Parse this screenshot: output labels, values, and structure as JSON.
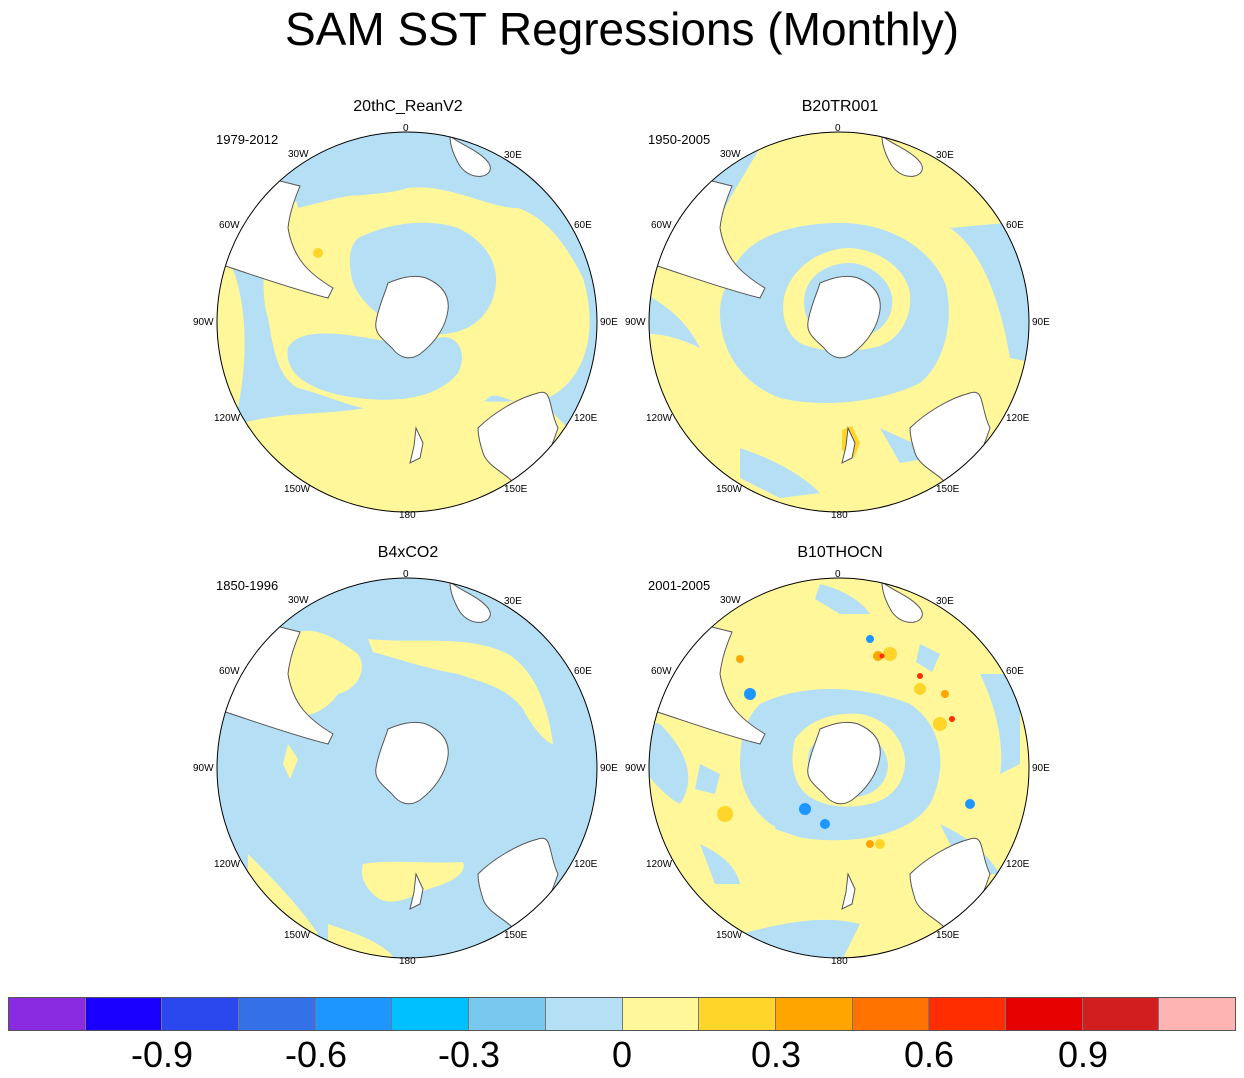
{
  "title": "SAM SST Regressions (Monthly)",
  "panels": [
    {
      "title": "20thC_ReanV2",
      "period": "1979-2012"
    },
    {
      "title": "B20TR001",
      "period": "1950-2005"
    },
    {
      "title": "B4xCO2",
      "period": "1850-1996"
    },
    {
      "title": "B10THOCN",
      "period": "2001-2005"
    }
  ],
  "longitude_labels": [
    "0",
    "30E",
    "60E",
    "90E",
    "120E",
    "150E",
    "180",
    "150W",
    "120W",
    "90W",
    "60W",
    "30W"
  ],
  "colorbar": {
    "colors": [
      "#8a2be2",
      "#1a00ff",
      "#2a48ee",
      "#3470e8",
      "#1e96ff",
      "#00c0ff",
      "#78c8f0",
      "#b4dff4",
      "#fff79a",
      "#ffd52a",
      "#ffa500",
      "#ff7300",
      "#ff2d00",
      "#e60000",
      "#d21e1e",
      "#ffb4b4"
    ],
    "tick_labels": [
      "-0.9",
      "-0.6",
      "-0.3",
      "0",
      "0.3",
      "0.6",
      "0.9"
    ]
  },
  "map_colors": {
    "blue": "#b4dff4",
    "yellow": "#fff79a",
    "orange": "#ffd52a",
    "deep_orange": "#ffa500",
    "red": "#ff2d00",
    "mid_blue": "#78c8f0",
    "bright_blue": "#1e96ff",
    "land": "#ffffff",
    "coast": "#555555"
  }
}
